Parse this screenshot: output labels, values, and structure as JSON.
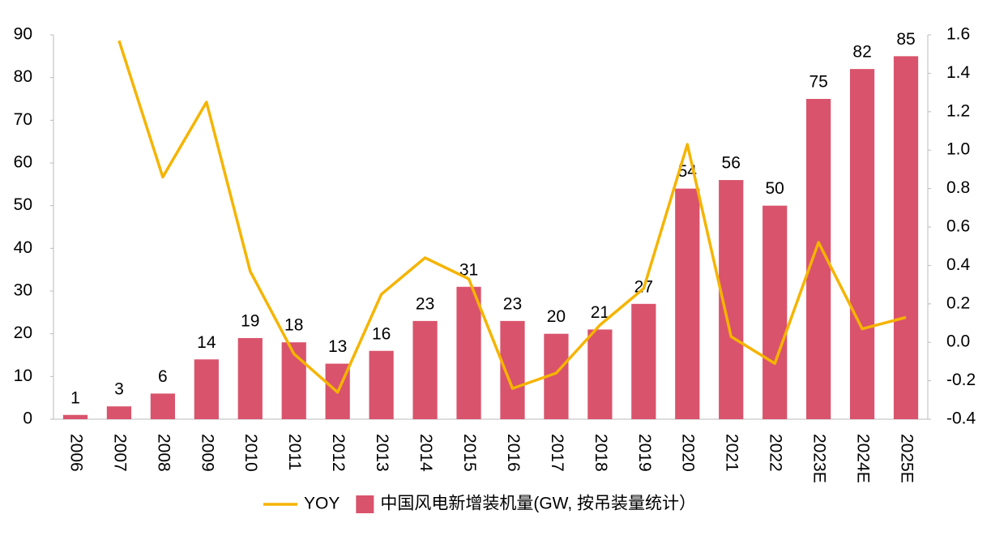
{
  "chart_data": {
    "type": "bar_line",
    "categories": [
      "2006",
      "2007",
      "2008",
      "2009",
      "2010",
      "2011",
      "2012",
      "2013",
      "2014",
      "2015",
      "2016",
      "2017",
      "2018",
      "2019",
      "2020",
      "2021",
      "2022",
      "2023E",
      "2024E",
      "2025E"
    ],
    "series": [
      {
        "name": "YOY",
        "type": "line",
        "axis": "y2",
        "color": "#f5b400",
        "values": [
          null,
          1.57,
          0.86,
          1.25,
          0.37,
          -0.06,
          -0.26,
          0.25,
          0.44,
          0.33,
          -0.24,
          -0.16,
          0.09,
          0.28,
          1.03,
          0.03,
          -0.11,
          0.52,
          0.07,
          0.13
        ]
      },
      {
        "name": "中国风电新增装机量(GW, 按吊装量统计）",
        "type": "bar",
        "color": "#d9536c",
        "values": [
          1,
          3,
          6,
          14,
          19,
          18,
          13,
          16,
          23,
          31,
          23,
          20,
          21,
          27,
          54,
          56,
          50,
          75,
          82,
          85
        ]
      }
    ],
    "ylim": [
      0,
      90
    ],
    "yticks": [
      0,
      10,
      20,
      30,
      40,
      50,
      60,
      70,
      80,
      90
    ],
    "y2lim": [
      -0.4,
      1.6
    ],
    "y2ticks": [
      -0.4,
      -0.2,
      {
        "value": 0,
        "label": "0.0"
      },
      0.2,
      0.4,
      0.6,
      0.8,
      {
        "value": 1,
        "label": "1.0"
      },
      1.2,
      1.4,
      1.6
    ],
    "grid": false,
    "legend": "bottom"
  }
}
